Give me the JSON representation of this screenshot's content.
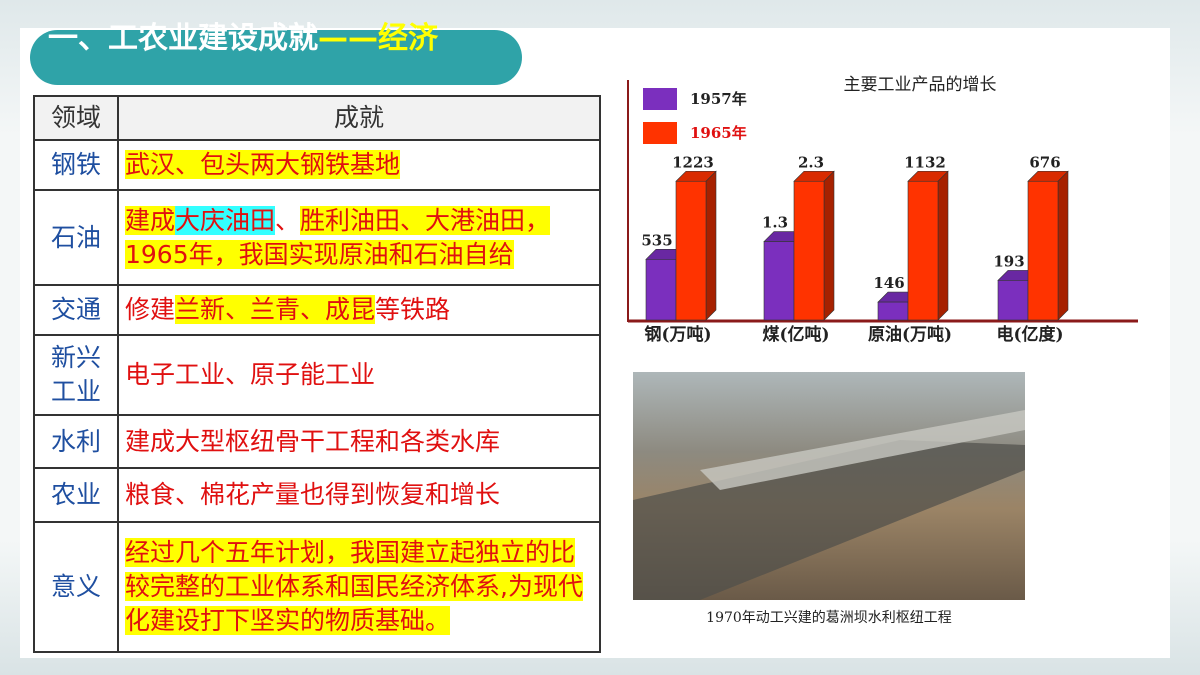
{
  "title": {
    "main": "一、工农业建设成就",
    "highlight": "——经济"
  },
  "table": {
    "header": [
      "领域",
      "成就"
    ],
    "rows": [
      {
        "field": "钢铁",
        "segments": [
          {
            "text": "武汉、包头两大钢铁基地",
            "hl": "#ffff00"
          }
        ]
      },
      {
        "field": "石油",
        "segments": [
          {
            "text": "建成",
            "hl": "#ffff00"
          },
          {
            "text": "大庆油田",
            "hl": "#33ffff"
          },
          {
            "text": "、",
            "hl": null
          },
          {
            "text": "胜利油田、大港油田，1965年，我国实现原油和石油自给",
            "hl": "#ffff00"
          }
        ]
      },
      {
        "field": "交通",
        "segments": [
          {
            "text": "修建",
            "hl": null
          },
          {
            "text": "兰新、兰青、成昆",
            "hl": "#ffff00"
          },
          {
            "text": "等铁路",
            "hl": null
          }
        ]
      },
      {
        "field": "新兴工业",
        "segments": [
          {
            "text": "电子工业、原子能工业",
            "hl": null
          }
        ]
      },
      {
        "field": "水利",
        "segments": [
          {
            "text": "建成大型枢纽骨干工程和各类水库",
            "hl": null
          }
        ]
      },
      {
        "field": "农业",
        "segments": [
          {
            "text": "粮食、棉花产量也得到恢复和增长",
            "hl": null
          }
        ]
      },
      {
        "field": "意义",
        "segments": [
          {
            "text": "经过几个五年计划，我国建立起独立的比较完整的工业体系和国民经济体系,为现代化建设打下坚实的物质基础。",
            "hl": "#ffff00"
          }
        ]
      }
    ]
  },
  "chart_data": {
    "type": "bar",
    "title": "主要工业产品的增长",
    "categories": [
      "钢(万吨)",
      "煤(亿吨)",
      "原油(万吨)",
      "电(亿度)"
    ],
    "series": [
      {
        "name": "1957年",
        "color": "#7b2fbe",
        "values": [
          535,
          1.3,
          146,
          193
        ]
      },
      {
        "name": "1965年",
        "color": "#ff3300",
        "values": [
          1223,
          2.3,
          1132,
          676
        ]
      }
    ]
  },
  "photo": {
    "caption": "1970年动工兴建的葛洲坝水利枢纽工程"
  }
}
